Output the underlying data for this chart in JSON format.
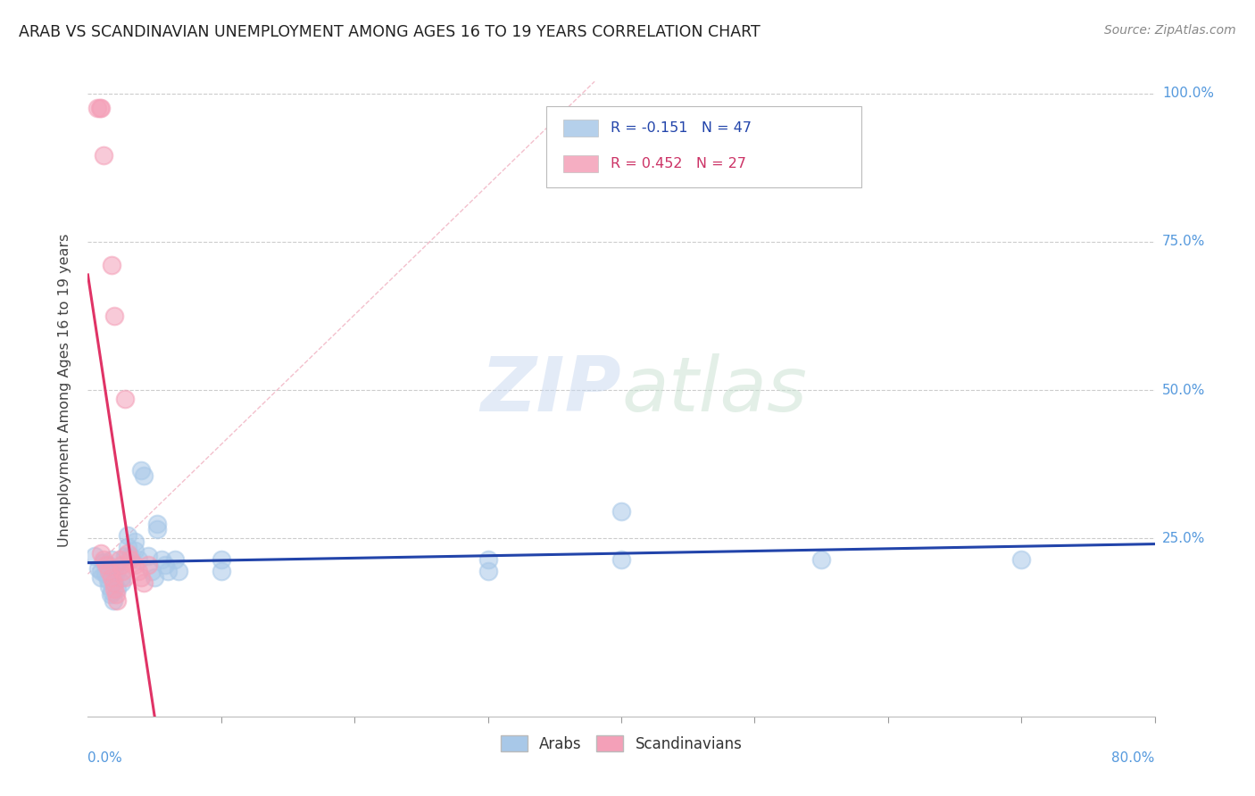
{
  "title": "ARAB VS SCANDINAVIAN UNEMPLOYMENT AMONG AGES 16 TO 19 YEARS CORRELATION CHART",
  "source": "Source: ZipAtlas.com",
  "ylabel": "Unemployment Among Ages 16 to 19 years",
  "xlim": [
    0.0,
    0.8
  ],
  "ylim": [
    -0.05,
    1.05
  ],
  "watermark_zip": "ZIP",
  "watermark_atlas": "atlas",
  "arab_color": "#a8c8e8",
  "scand_color": "#f4a0b8",
  "trend_arab_color": "#2244aa",
  "trend_scand_color": "#e03366",
  "arab_R": -0.151,
  "arab_N": 47,
  "scand_R": 0.452,
  "scand_N": 27,
  "arab_points": [
    [
      0.005,
      0.22
    ],
    [
      0.008,
      0.2
    ],
    [
      0.01,
      0.195
    ],
    [
      0.01,
      0.185
    ],
    [
      0.012,
      0.21
    ],
    [
      0.013,
      0.19
    ],
    [
      0.015,
      0.205
    ],
    [
      0.015,
      0.18
    ],
    [
      0.016,
      0.17
    ],
    [
      0.017,
      0.155
    ],
    [
      0.018,
      0.215
    ],
    [
      0.018,
      0.16
    ],
    [
      0.019,
      0.145
    ],
    [
      0.02,
      0.2
    ],
    [
      0.02,
      0.19
    ],
    [
      0.02,
      0.175
    ],
    [
      0.022,
      0.165
    ],
    [
      0.022,
      0.195
    ],
    [
      0.025,
      0.185
    ],
    [
      0.025,
      0.175
    ],
    [
      0.028,
      0.22
    ],
    [
      0.03,
      0.255
    ],
    [
      0.03,
      0.235
    ],
    [
      0.032,
      0.22
    ],
    [
      0.035,
      0.245
    ],
    [
      0.035,
      0.23
    ],
    [
      0.038,
      0.215
    ],
    [
      0.04,
      0.365
    ],
    [
      0.042,
      0.355
    ],
    [
      0.045,
      0.22
    ],
    [
      0.048,
      0.195
    ],
    [
      0.05,
      0.185
    ],
    [
      0.052,
      0.275
    ],
    [
      0.052,
      0.265
    ],
    [
      0.055,
      0.215
    ],
    [
      0.058,
      0.205
    ],
    [
      0.06,
      0.195
    ],
    [
      0.065,
      0.215
    ],
    [
      0.068,
      0.195
    ],
    [
      0.1,
      0.215
    ],
    [
      0.1,
      0.195
    ],
    [
      0.3,
      0.215
    ],
    [
      0.3,
      0.195
    ],
    [
      0.4,
      0.295
    ],
    [
      0.4,
      0.215
    ],
    [
      0.55,
      0.215
    ],
    [
      0.7,
      0.215
    ]
  ],
  "scand_points": [
    [
      0.007,
      0.975
    ],
    [
      0.009,
      0.975
    ],
    [
      0.01,
      0.975
    ],
    [
      0.012,
      0.895
    ],
    [
      0.018,
      0.71
    ],
    [
      0.02,
      0.625
    ],
    [
      0.028,
      0.485
    ],
    [
      0.01,
      0.225
    ],
    [
      0.012,
      0.215
    ],
    [
      0.014,
      0.205
    ],
    [
      0.016,
      0.195
    ],
    [
      0.018,
      0.185
    ],
    [
      0.019,
      0.175
    ],
    [
      0.02,
      0.165
    ],
    [
      0.021,
      0.155
    ],
    [
      0.022,
      0.145
    ],
    [
      0.024,
      0.215
    ],
    [
      0.025,
      0.205
    ],
    [
      0.026,
      0.195
    ],
    [
      0.028,
      0.185
    ],
    [
      0.03,
      0.225
    ],
    [
      0.032,
      0.215
    ],
    [
      0.035,
      0.205
    ],
    [
      0.038,
      0.195
    ],
    [
      0.04,
      0.185
    ],
    [
      0.042,
      0.175
    ],
    [
      0.045,
      0.205
    ]
  ],
  "dashed_line": [
    [
      0.0,
      0.19
    ],
    [
      0.38,
      1.02
    ]
  ]
}
